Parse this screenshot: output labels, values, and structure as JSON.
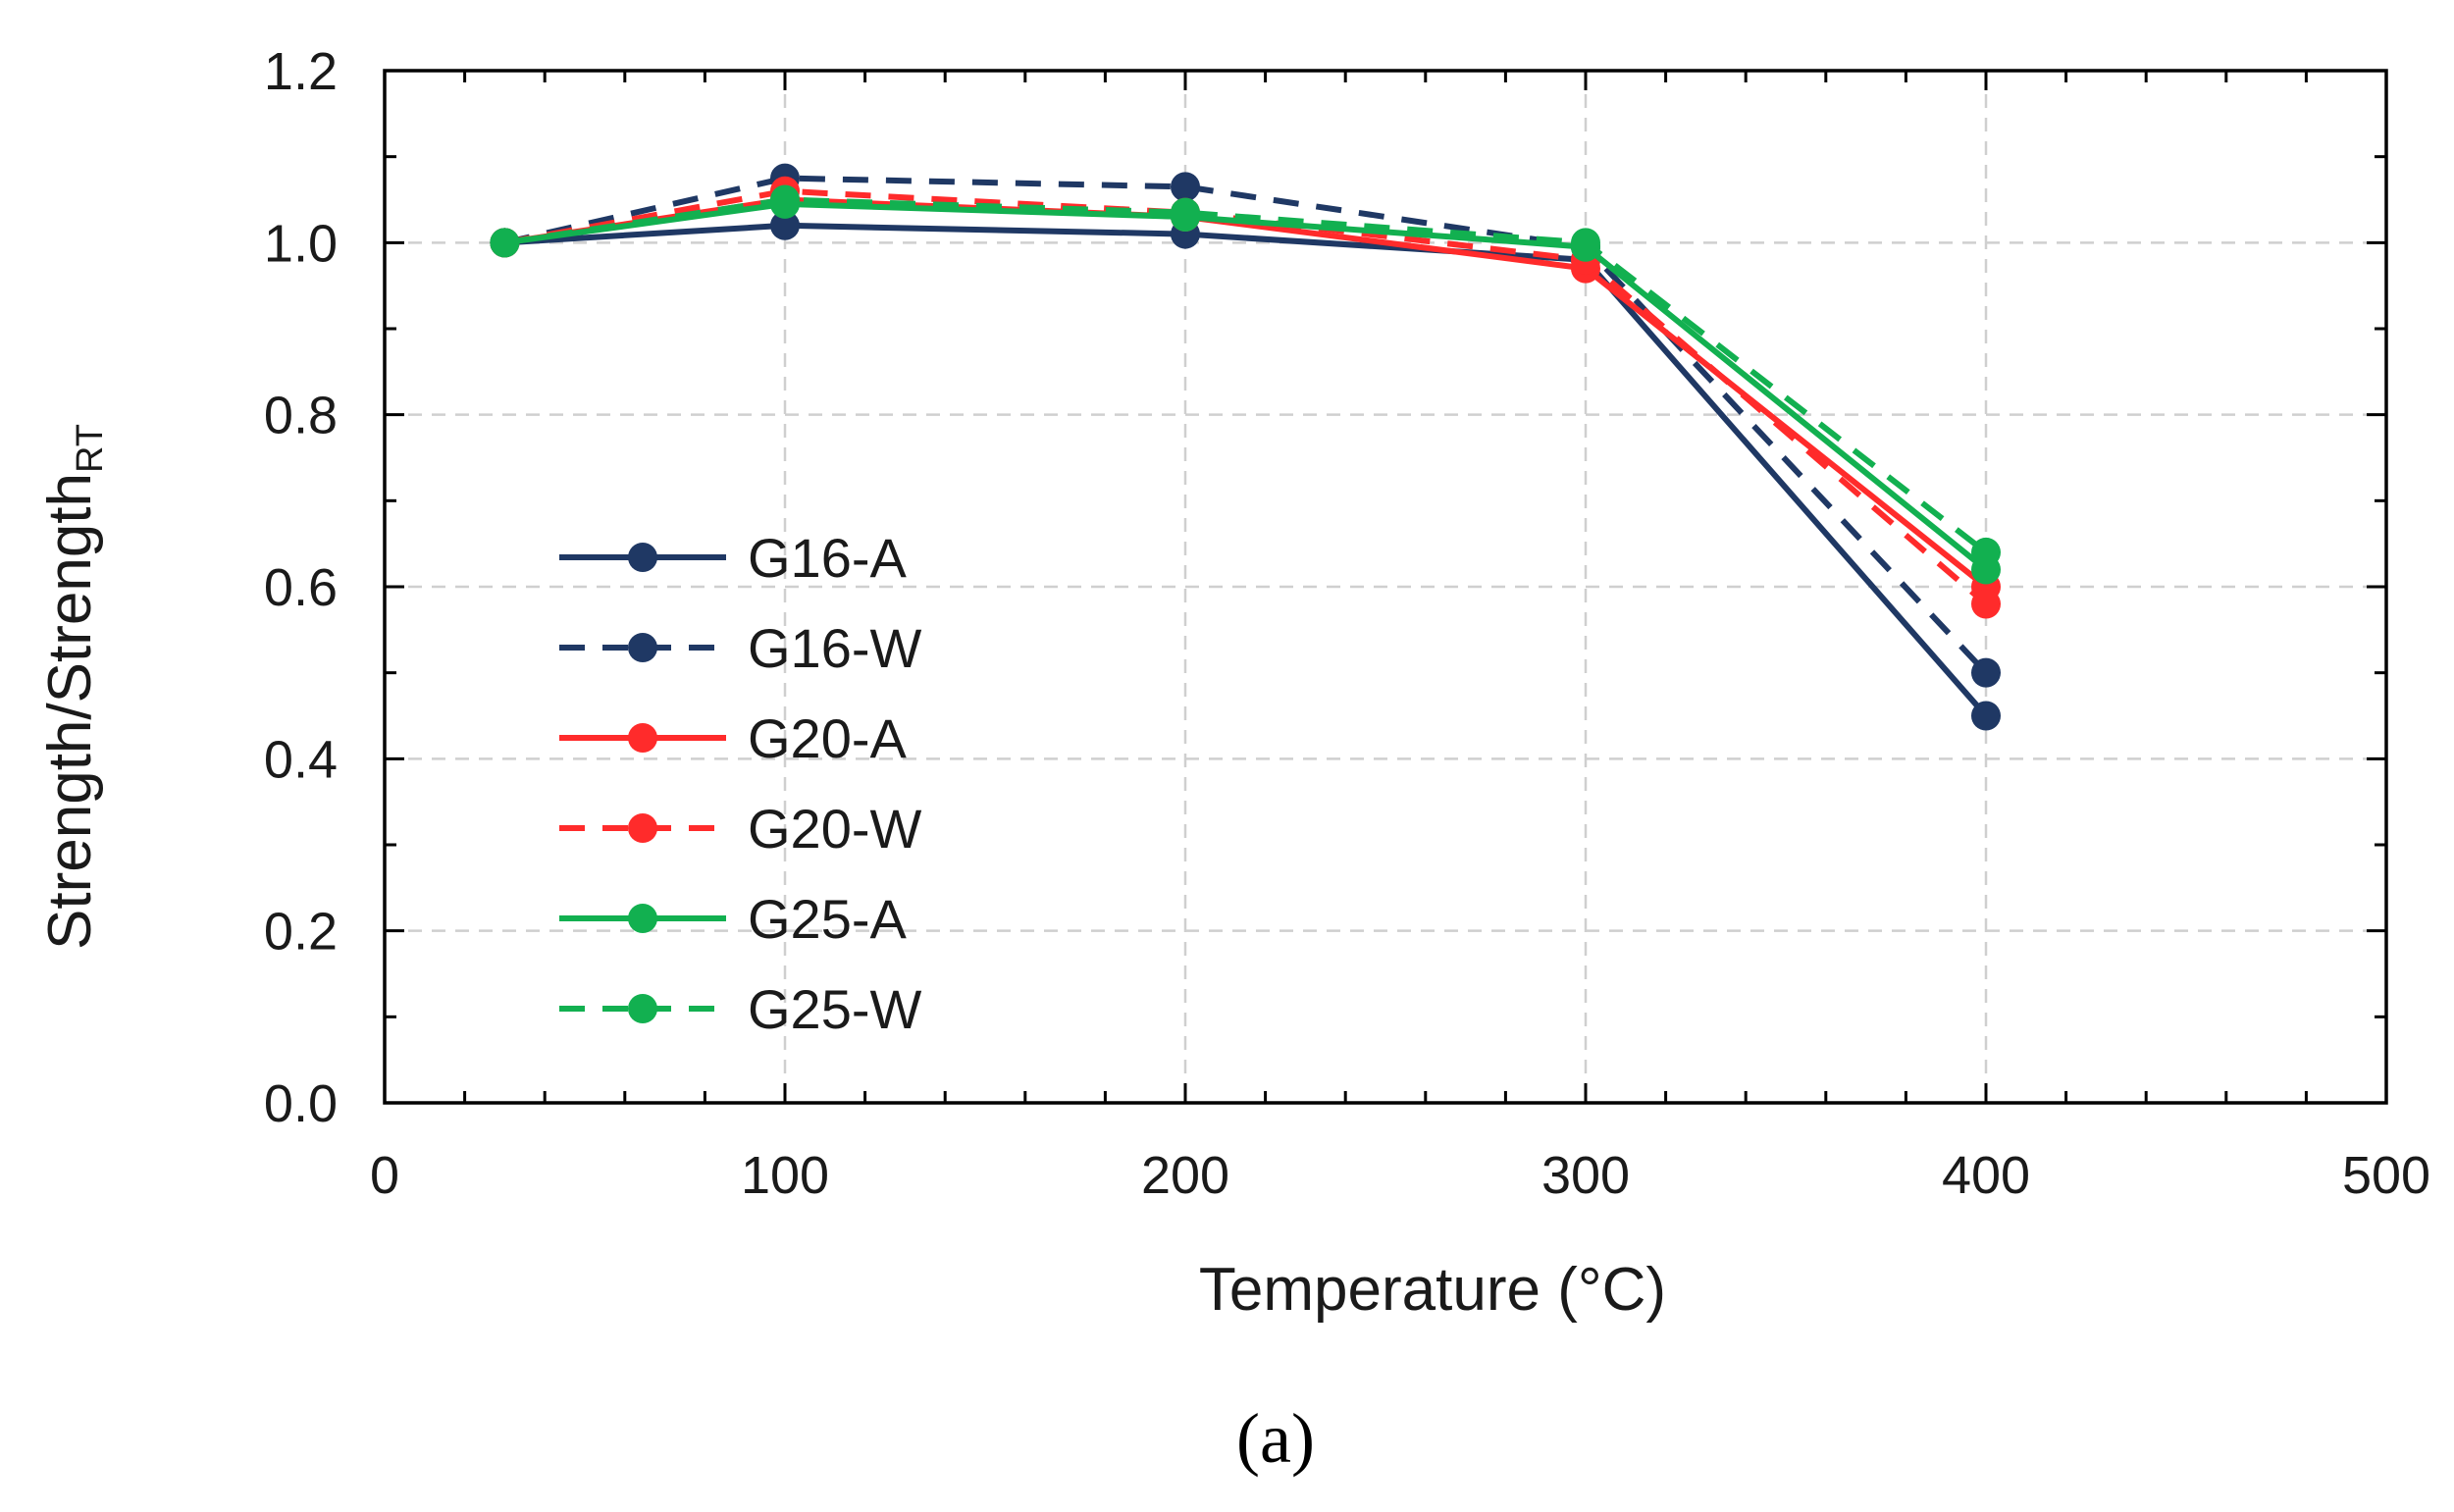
{
  "chart_data": {
    "type": "line",
    "title": "",
    "xlabel": "Temperature (°C)",
    "ylabel_main": "Strength/Strength",
    "ylabel_sub": "RT",
    "xlim": [
      0,
      500
    ],
    "ylim": [
      0,
      1.2
    ],
    "xticks": [
      0,
      100,
      200,
      300,
      400,
      500
    ],
    "xtick_labels": [
      "0",
      "100",
      "200",
      "300",
      "400",
      "500"
    ],
    "yticks": [
      0,
      0.2,
      0.4,
      0.6,
      0.8,
      1.0,
      1.2
    ],
    "ytick_labels": [
      "0.0",
      "0.2",
      "0.4",
      "0.6",
      "0.8",
      "1.0",
      "1.2"
    ],
    "grid": true,
    "legend_position": "center-left",
    "x": [
      30,
      100,
      200,
      300,
      400
    ],
    "series": [
      {
        "name": "G16-A",
        "color": "#1f3864",
        "dashed": false,
        "values": [
          1.0,
          1.02,
          1.01,
          0.98,
          0.45
        ]
      },
      {
        "name": "G16-W",
        "color": "#1f3864",
        "dashed": true,
        "values": [
          1.0,
          1.075,
          1.065,
          0.995,
          0.5
        ]
      },
      {
        "name": "G20-A",
        "color": "#ff2b2b",
        "dashed": false,
        "values": [
          1.0,
          1.05,
          1.03,
          0.97,
          0.6
        ]
      },
      {
        "name": "G20-W",
        "color": "#ff2b2b",
        "dashed": true,
        "values": [
          1.0,
          1.06,
          1.035,
          0.98,
          0.58
        ]
      },
      {
        "name": "G25-A",
        "color": "#12b050",
        "dashed": false,
        "values": [
          1.0,
          1.045,
          1.03,
          0.995,
          0.62
        ]
      },
      {
        "name": "G25-W",
        "color": "#12b050",
        "dashed": true,
        "values": [
          1.0,
          1.05,
          1.035,
          1.0,
          0.64
        ]
      }
    ]
  },
  "caption": "(a)"
}
